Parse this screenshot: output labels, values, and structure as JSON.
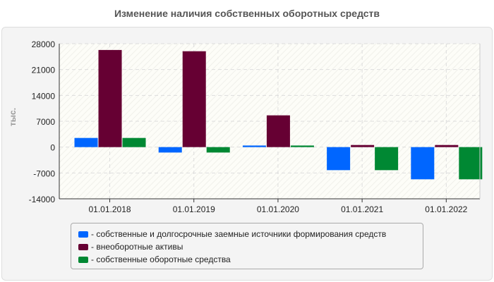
{
  "chart_data": {
    "type": "bar",
    "title": "Изменение наличия собственных оборотных средств",
    "ylabel": "тыс.",
    "xlabel": "",
    "categories": [
      "01.01.2018",
      "01.01.2019",
      "01.01.2020",
      "01.01.2021",
      "01.01.2022"
    ],
    "ylim": [
      -14000,
      28000
    ],
    "yticks": [
      28000,
      21000,
      14000,
      7000,
      0,
      -7000,
      -14000
    ],
    "grid": true,
    "legend_placement": "bottom",
    "series": [
      {
        "name": "- собственные и долгосрочные заемные источники формирования средств",
        "color": "#0066ff",
        "values": [
          2480,
          -1470,
          430,
          -6240,
          -8720
        ]
      },
      {
        "name": "- внеоборотные активы",
        "color": "#660033",
        "values": [
          26300,
          25960,
          8600,
          570,
          570
        ]
      },
      {
        "name": "- собственные оборотные средства",
        "color": "#008833",
        "values": [
          2480,
          -1470,
          430,
          -6240,
          -8720
        ]
      }
    ]
  }
}
